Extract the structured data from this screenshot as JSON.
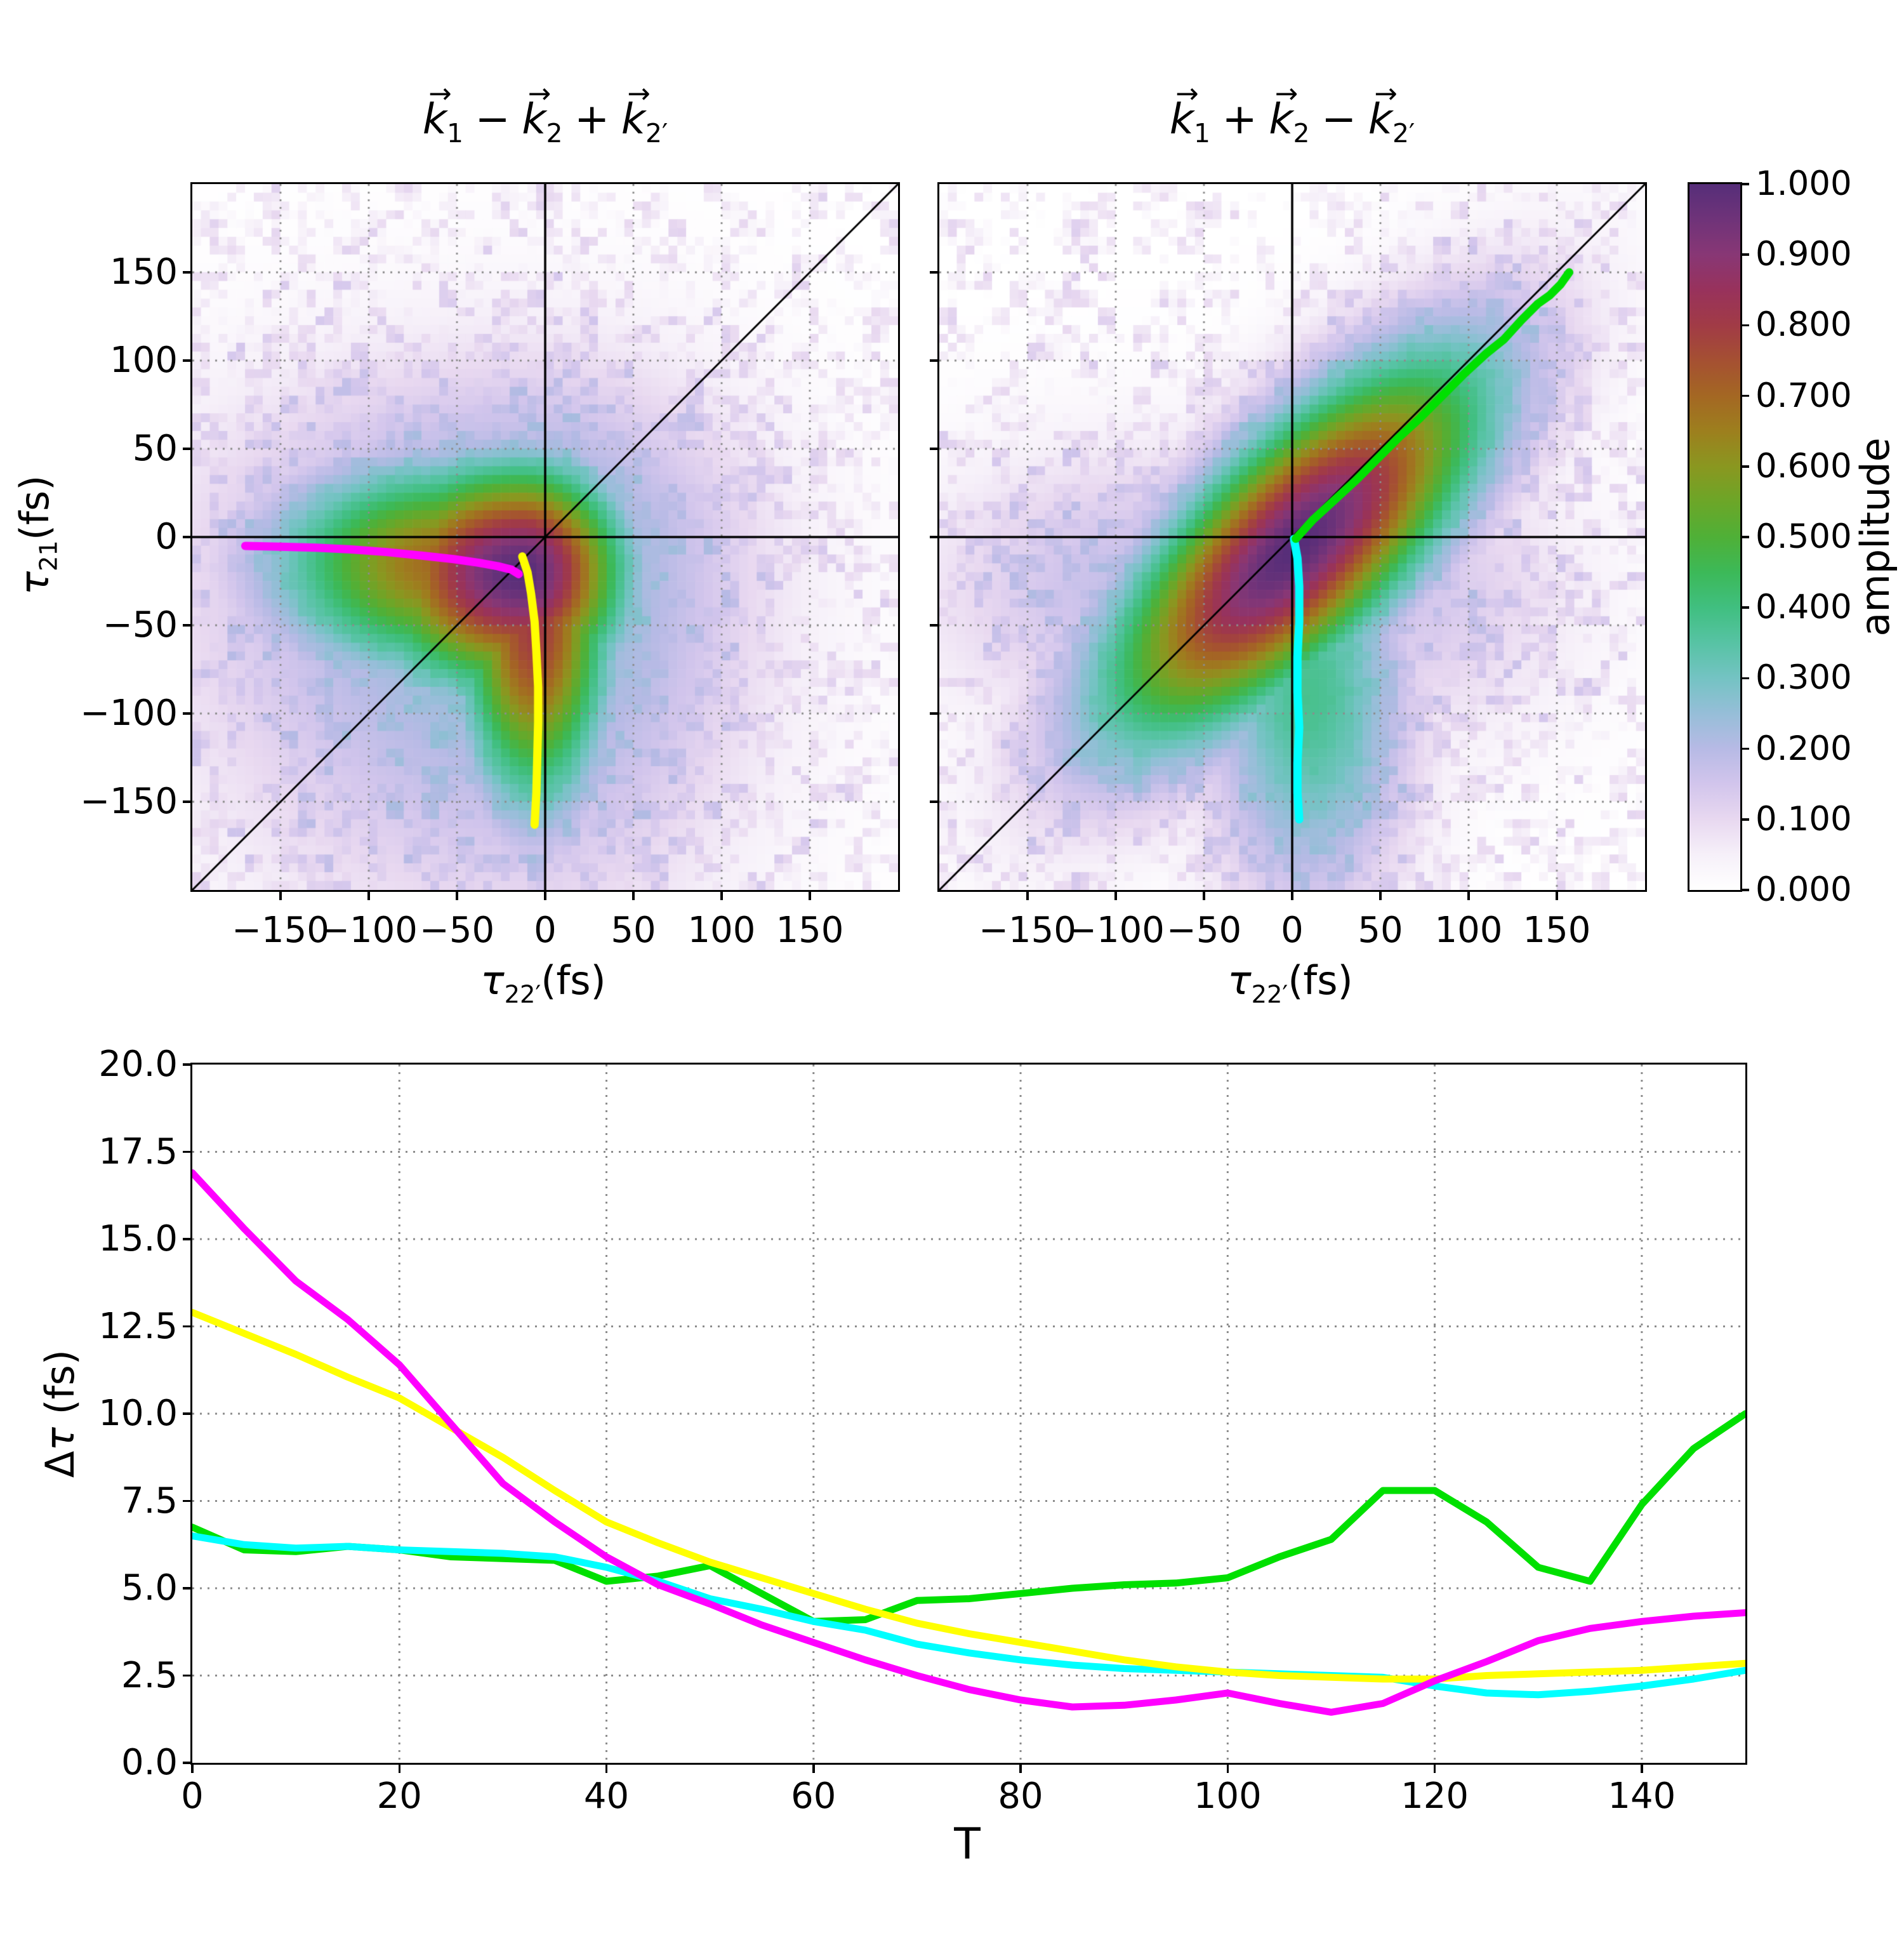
{
  "figure": {
    "background": "#ffffff",
    "vector_arrow": "→",
    "accent_black": "#000000",
    "grid_color": "#8c8c8c"
  },
  "colorbar": {
    "label": "amplitude",
    "tick_values": [
      0.0,
      0.1,
      0.2,
      0.3,
      0.4,
      0.5,
      0.6,
      0.7,
      0.8,
      0.9,
      1.0
    ],
    "tick_labels": [
      "0.000",
      "0.100",
      "0.200",
      "0.300",
      "0.400",
      "0.500",
      "0.600",
      "0.700",
      "0.800",
      "0.900",
      "1.000"
    ],
    "colormap_stops": [
      [
        0.0,
        "#ffffff"
      ],
      [
        0.05,
        "#f6f0f9"
      ],
      [
        0.1,
        "#e8d8f0"
      ],
      [
        0.15,
        "#d2c5ec"
      ],
      [
        0.2,
        "#b7bae5"
      ],
      [
        0.25,
        "#96bed8"
      ],
      [
        0.3,
        "#74c3c3"
      ],
      [
        0.35,
        "#57c3a4"
      ],
      [
        0.4,
        "#40bf80"
      ],
      [
        0.45,
        "#3cb958"
      ],
      [
        0.5,
        "#4fb037"
      ],
      [
        0.55,
        "#6ca628"
      ],
      [
        0.6,
        "#8a9720"
      ],
      [
        0.65,
        "#9d7f1e"
      ],
      [
        0.7,
        "#a46723"
      ],
      [
        0.75,
        "#a55032"
      ],
      [
        0.8,
        "#a13b46"
      ],
      [
        0.85,
        "#98325c"
      ],
      [
        0.9,
        "#883775"
      ],
      [
        0.95,
        "#6f3379"
      ],
      [
        1.0,
        "#562e79"
      ]
    ]
  },
  "chart_data": [
    {
      "type": "heatmap",
      "title": {
        "terms": [
          {
            "op": "",
            "base": "k",
            "sub": "1"
          },
          {
            "op": "−",
            "base": "k",
            "sub": "2"
          },
          {
            "op": "+",
            "base": "k",
            "sub": "2′"
          }
        ]
      },
      "xlabel": {
        "sym": "τ",
        "sub": "22′",
        "unit": "(fs)"
      },
      "ylabel": {
        "sym": "τ",
        "sub": "21",
        "unit": "(fs)"
      },
      "xlim": [
        -200,
        200
      ],
      "ylim": [
        -200,
        200
      ],
      "xticks": {
        "values": [
          -150,
          -100,
          -50,
          0,
          50,
          100,
          150
        ],
        "labels": [
          "−150",
          "−100",
          "−50",
          "0",
          "50",
          "100",
          "150"
        ]
      },
      "yticks": {
        "values": [
          150,
          100,
          50,
          0,
          -50,
          -100,
          -150
        ],
        "labels": [
          "150",
          "100",
          "50",
          "0",
          "−50",
          "−100",
          "−150"
        ]
      },
      "grid_values": [
        -150,
        -100,
        -50,
        50,
        100,
        150
      ],
      "reference_lines": [
        "x=0",
        "y=0",
        "y=x"
      ],
      "cells": 80,
      "seed": 12345,
      "noise_amplitude": 0.13,
      "amplitude_components": [
        {
          "name": "core",
          "cx": -13,
          "cy": -20,
          "sx_left": 62,
          "sx_right": 40,
          "sy_up": 42,
          "sy_down": 46,
          "w": 1.0
        },
        {
          "name": "vertical-arm",
          "cx": -6,
          "cy": -50,
          "sx_left": 30,
          "sx_right": 30,
          "sy_up": 55,
          "sy_down": 72,
          "w": 0.8
        },
        {
          "name": "left-arm",
          "cx": -55,
          "cy": -15,
          "sx_left": 70,
          "sx_right": 70,
          "sy_up": 40,
          "sy_down": 44,
          "w": 0.7
        },
        {
          "name": "halo",
          "cx": -10,
          "cy": -20,
          "sx_left": 125,
          "sx_right": 85,
          "sy_up": 78,
          "sy_down": 125,
          "w": 0.3
        }
      ],
      "overlay_curves": [
        {
          "name": "tau21-ridge-trace-yellow",
          "color": "#ffff00",
          "width": 13,
          "points": [
            [
              -13,
              -11
            ],
            [
              -10,
              -20
            ],
            [
              -8,
              -32
            ],
            [
              -6,
              -48
            ],
            [
              -5,
              -65
            ],
            [
              -4,
              -85
            ],
            [
              -4,
              -105
            ],
            [
              -4.5,
              -125
            ],
            [
              -5,
              -145
            ],
            [
              -6,
              -163
            ]
          ]
        },
        {
          "name": "tau22-ridge-trace-magenta",
          "color": "#ff00ff",
          "width": 13,
          "points": [
            [
              -170,
              -5
            ],
            [
              -150,
              -5.5
            ],
            [
              -130,
              -6
            ],
            [
              -110,
              -7
            ],
            [
              -90,
              -8.5
            ],
            [
              -70,
              -10.5
            ],
            [
              -52,
              -12.5
            ],
            [
              -38,
              -14.5
            ],
            [
              -27,
              -16.5
            ],
            [
              -19,
              -18.5
            ],
            [
              -15,
              -21
            ]
          ]
        }
      ]
    },
    {
      "type": "heatmap",
      "title": {
        "terms": [
          {
            "op": "",
            "base": "k",
            "sub": "1"
          },
          {
            "op": "+",
            "base": "k",
            "sub": "2"
          },
          {
            "op": "−",
            "base": "k",
            "sub": "2′"
          }
        ]
      },
      "xlabel": {
        "sym": "τ",
        "sub": "22′",
        "unit": "(fs)"
      },
      "ylabel": {
        "sym": "τ",
        "sub": "21",
        "unit": "(fs)"
      },
      "xlim": [
        -200,
        200
      ],
      "ylim": [
        -200,
        200
      ],
      "xticks": {
        "values": [
          -150,
          -100,
          -50,
          0,
          50,
          100,
          150
        ],
        "labels": [
          "−150",
          "−100",
          "−50",
          "0",
          "50",
          "100",
          "150"
        ]
      },
      "yticks": {
        "values": [
          150,
          100,
          50,
          0,
          -50,
          -100,
          -150
        ],
        "labels": []
      },
      "grid_values": [
        -150,
        -100,
        -50,
        50,
        100,
        150
      ],
      "reference_lines": [
        "x=0",
        "y=0",
        "y=x"
      ],
      "cells": 80,
      "seed": 67890,
      "noise_amplitude": 0.13,
      "amplitude_components": [
        {
          "name": "diagonal-core",
          "rot45": true,
          "cx": 2,
          "cy": -6,
          "su": 39,
          "sv": 97,
          "w": 1.0
        },
        {
          "name": "down-arm",
          "cx": 10,
          "cy": -90,
          "sx_left": 40,
          "sx_right": 40,
          "sy_up": 80,
          "sy_down": 80,
          "w": 0.38
        },
        {
          "name": "right-arm",
          "cx": 60,
          "cy": -30,
          "sx_left": 70,
          "sx_right": 70,
          "sy_up": 60,
          "sy_down": 60,
          "w": 0.15
        },
        {
          "name": "left-arm",
          "cx": -80,
          "cy": -30,
          "sx_left": 90,
          "sx_right": 90,
          "sy_up": 55,
          "sy_down": 55,
          "w": 0.18
        }
      ],
      "overlay_curves": [
        {
          "name": "tau21-ridge-trace-cyan",
          "color": "#00ffff",
          "width": 13,
          "points": [
            [
              1,
              -1
            ],
            [
              3,
              -12
            ],
            [
              4,
              -28
            ],
            [
              4,
              -48
            ],
            [
              3,
              -68
            ],
            [
              3,
              -88
            ],
            [
              4,
              -108
            ],
            [
              3,
              -128
            ],
            [
              3,
              -145
            ],
            [
              4,
              -160
            ]
          ]
        },
        {
          "name": "diagonal-ridge-trace-green",
          "color": "#00e000",
          "width": 13,
          "points": [
            [
              2,
              -1
            ],
            [
              12,
              10
            ],
            [
              24,
              21
            ],
            [
              36,
              32
            ],
            [
              48,
              44
            ],
            [
              60,
              56
            ],
            [
              72,
              67
            ],
            [
              85,
              80
            ],
            [
              98,
              93
            ],
            [
              110,
              104
            ],
            [
              120,
              112
            ],
            [
              130,
              123
            ],
            [
              139,
              132
            ],
            [
              146,
              137
            ],
            [
              152,
              143
            ],
            [
              157,
              150
            ]
          ]
        }
      ]
    },
    {
      "type": "line",
      "xlabel": "T",
      "ylabel_delta": "Δ",
      "ylabel_tau": "τ",
      "ylabel_unit": " (fs)",
      "xlim": [
        0,
        150
      ],
      "ylim": [
        0,
        20
      ],
      "xticks": {
        "values": [
          0,
          20,
          40,
          60,
          80,
          100,
          120,
          140
        ],
        "labels": [
          "0",
          "20",
          "40",
          "60",
          "80",
          "100",
          "120",
          "140"
        ]
      },
      "yticks": {
        "values": [
          0,
          2.5,
          5,
          7.5,
          10,
          12.5,
          15,
          17.5,
          20
        ],
        "labels": [
          "0.0",
          "2.5",
          "5.0",
          "7.5",
          "10.0",
          "12.5",
          "15.0",
          "17.5",
          "20.0"
        ]
      },
      "grid_x": [
        20,
        40,
        60,
        80,
        100,
        120,
        140
      ],
      "grid_y": [
        2.5,
        5,
        7.5,
        10,
        12.5,
        15,
        17.5
      ],
      "x": [
        0,
        5,
        10,
        15,
        20,
        25,
        30,
        35,
        40,
        45,
        50,
        55,
        60,
        65,
        70,
        75,
        80,
        85,
        90,
        95,
        100,
        105,
        110,
        115,
        120,
        125,
        130,
        135,
        140,
        145,
        150
      ],
      "series": [
        {
          "name": "green-diagonal-ridge-width",
          "color": "#00e000",
          "width": 11,
          "values": [
            6.75,
            6.1,
            6.05,
            6.2,
            6.1,
            5.9,
            5.85,
            5.8,
            5.2,
            5.35,
            5.65,
            4.85,
            4.05,
            4.1,
            4.65,
            4.7,
            4.85,
            5.0,
            5.1,
            5.15,
            5.3,
            5.9,
            6.4,
            7.8,
            7.8,
            6.9,
            5.6,
            5.2,
            7.4,
            9.0,
            10.0
          ]
        },
        {
          "name": "cyan-tau21-ridge-width",
          "color": "#00ffff",
          "width": 11,
          "values": [
            6.5,
            6.25,
            6.15,
            6.2,
            6.1,
            6.05,
            6.0,
            5.9,
            5.6,
            5.2,
            4.7,
            4.4,
            4.05,
            3.8,
            3.4,
            3.15,
            2.95,
            2.8,
            2.7,
            2.65,
            2.6,
            2.55,
            2.5,
            2.45,
            2.2,
            2.0,
            1.95,
            2.05,
            2.2,
            2.4,
            2.65
          ]
        },
        {
          "name": "yellow-tau21-ridge-width",
          "color": "#ffff00",
          "width": 11,
          "values": [
            12.9,
            12.3,
            11.7,
            11.05,
            10.45,
            9.6,
            8.75,
            7.8,
            6.9,
            6.3,
            5.75,
            5.3,
            4.85,
            4.4,
            4.0,
            3.7,
            3.45,
            3.2,
            2.95,
            2.75,
            2.6,
            2.5,
            2.45,
            2.4,
            2.4,
            2.5,
            2.55,
            2.6,
            2.65,
            2.75,
            2.85
          ]
        },
        {
          "name": "magenta-tau22-ridge-width",
          "color": "#ff00ff",
          "width": 11,
          "values": [
            16.9,
            15.3,
            13.8,
            12.7,
            11.4,
            9.7,
            8.0,
            6.9,
            5.9,
            5.1,
            4.55,
            3.95,
            3.45,
            2.95,
            2.5,
            2.1,
            1.8,
            1.6,
            1.65,
            1.8,
            2.0,
            1.7,
            1.45,
            1.7,
            2.35,
            2.9,
            3.5,
            3.85,
            4.05,
            4.2,
            4.3
          ]
        }
      ]
    }
  ],
  "layout_note_values": {
    "left_plot": [
      300,
      287,
      1112,
      1112
    ],
    "right_plot": [
      1477,
      287,
      1112,
      1112
    ],
    "colorbar_box": [
      2659,
      287,
      80,
      1112
    ],
    "bottom_plot": [
      300,
      1674,
      2447,
      1100
    ]
  }
}
